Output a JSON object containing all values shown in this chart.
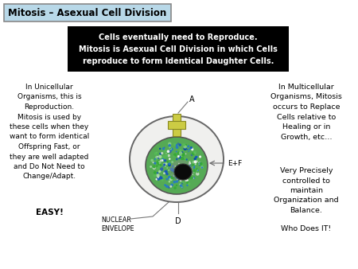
{
  "title": "Mitosis – Asexual Cell Division",
  "black_box_text": "Cells eventually need to Reproduce.\nMitosis is Asexual Cell Division in which Cells\nreproduce to form Identical Daughter Cells.",
  "left_text": "In Unicellular\nOrganisms, this is\nReproduction.\nMitosis is used by\nthese cells when they\nwant to form identical\nOffspring Fast, or\nthey are well adapted\nand Do Not Need to\nChange/Adapt.",
  "left_easy": "EASY!",
  "right_text_block1": "In Multicellular\nOrganisms, Mitosis\noccurs to Replace\nCells relative to\nHealing or in\nGrowth, etc…",
  "right_text_block2": "Very Precisely\ncontrolled to\nmaintain\nOrganization and\nBalance.",
  "right_text_block3": "Who Does IT!",
  "label_A": "A",
  "label_D": "D",
  "label_EF": "E+F",
  "label_nuclear": "NUCLEAR\nENVELOPE",
  "bg_color": "#ffffff",
  "title_box_facecolor": "#b8d8e8",
  "title_box_edgecolor": "#888888",
  "black_box_bg": "#000000",
  "black_box_text_color": "#ffffff"
}
